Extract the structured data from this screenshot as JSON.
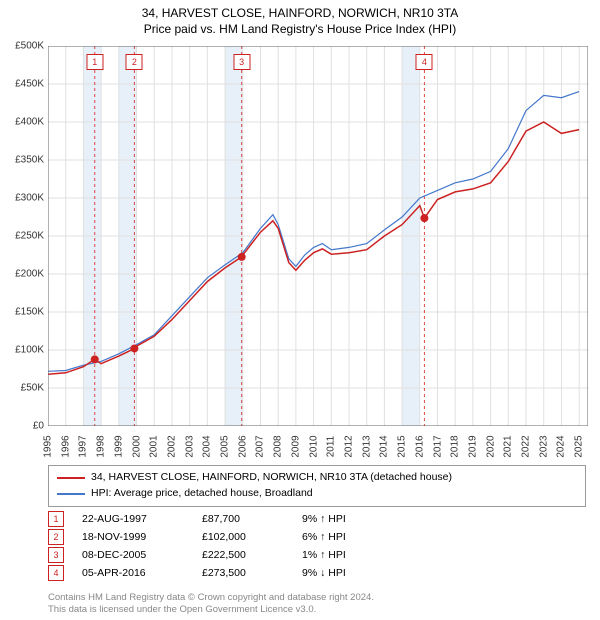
{
  "title_line1": "34, HARVEST CLOSE, HAINFORD, NORWICH, NR10 3TA",
  "title_line2": "Price paid vs. HM Land Registry's House Price Index (HPI)",
  "chart": {
    "type": "line",
    "background_color": "#ffffff",
    "grid_color": "#e0e0e0",
    "axis_color": "#666666",
    "band_color": "#e7f0f8",
    "band_ranges_years": [
      [
        1997,
        1998
      ],
      [
        1999,
        2000
      ],
      [
        2005,
        2006
      ],
      [
        2015,
        2016
      ]
    ],
    "marker_line_color": "#dd4444",
    "x_min": 1995,
    "x_max": 2025.5,
    "y_min": 0,
    "y_max": 500000,
    "y_ticks": [
      0,
      50000,
      100000,
      150000,
      200000,
      250000,
      300000,
      350000,
      400000,
      450000,
      500000
    ],
    "y_tick_labels": [
      "£0",
      "£50K",
      "£100K",
      "£150K",
      "£200K",
      "£250K",
      "£300K",
      "£350K",
      "£400K",
      "£450K",
      "£500K"
    ],
    "x_ticks": [
      1995,
      1996,
      1997,
      1998,
      1999,
      2000,
      2001,
      2002,
      2003,
      2004,
      2005,
      2006,
      2007,
      2008,
      2009,
      2010,
      2011,
      2012,
      2013,
      2014,
      2015,
      2016,
      2017,
      2018,
      2019,
      2020,
      2021,
      2022,
      2023,
      2024,
      2025
    ],
    "series": [
      {
        "name": "hpi",
        "color": "#4477cc",
        "width": 1.2,
        "points": [
          [
            1995,
            72000
          ],
          [
            1996,
            73000
          ],
          [
            1997,
            80000
          ],
          [
            1998,
            85000
          ],
          [
            1999,
            95000
          ],
          [
            2000,
            107000
          ],
          [
            2001,
            120000
          ],
          [
            2002,
            145000
          ],
          [
            2003,
            170000
          ],
          [
            2004,
            195000
          ],
          [
            2005,
            212000
          ],
          [
            2006,
            228000
          ],
          [
            2007,
            260000
          ],
          [
            2007.7,
            278000
          ],
          [
            2008,
            265000
          ],
          [
            2008.6,
            220000
          ],
          [
            2009,
            210000
          ],
          [
            2009.5,
            225000
          ],
          [
            2010,
            235000
          ],
          [
            2010.5,
            240000
          ],
          [
            2011,
            232000
          ],
          [
            2012,
            235000
          ],
          [
            2013,
            240000
          ],
          [
            2014,
            258000
          ],
          [
            2015,
            275000
          ],
          [
            2016,
            300000
          ],
          [
            2017,
            310000
          ],
          [
            2018,
            320000
          ],
          [
            2019,
            325000
          ],
          [
            2020,
            335000
          ],
          [
            2021,
            365000
          ],
          [
            2022,
            415000
          ],
          [
            2023,
            435000
          ],
          [
            2024,
            432000
          ],
          [
            2025,
            440000
          ]
        ]
      },
      {
        "name": "property",
        "color": "#cc2222",
        "width": 1.5,
        "points": [
          [
            1995,
            68000
          ],
          [
            1996,
            70000
          ],
          [
            1997,
            78000
          ],
          [
            1997.64,
            87700
          ],
          [
            1998,
            82000
          ],
          [
            1999,
            92000
          ],
          [
            1999.88,
            102000
          ],
          [
            2000,
            105000
          ],
          [
            2001,
            118000
          ],
          [
            2002,
            140000
          ],
          [
            2003,
            165000
          ],
          [
            2004,
            190000
          ],
          [
            2005,
            208000
          ],
          [
            2005.94,
            222500
          ],
          [
            2006,
            225000
          ],
          [
            2007,
            255000
          ],
          [
            2007.7,
            270000
          ],
          [
            2008,
            260000
          ],
          [
            2008.6,
            215000
          ],
          [
            2009,
            205000
          ],
          [
            2009.5,
            218000
          ],
          [
            2010,
            228000
          ],
          [
            2010.5,
            233000
          ],
          [
            2011,
            226000
          ],
          [
            2012,
            228000
          ],
          [
            2013,
            232000
          ],
          [
            2014,
            250000
          ],
          [
            2015,
            265000
          ],
          [
            2016,
            290000
          ],
          [
            2016.26,
            273500
          ],
          [
            2017,
            298000
          ],
          [
            2018,
            308000
          ],
          [
            2019,
            312000
          ],
          [
            2020,
            320000
          ],
          [
            2021,
            348000
          ],
          [
            2022,
            388000
          ],
          [
            2023,
            400000
          ],
          [
            2024,
            385000
          ],
          [
            2025,
            390000
          ]
        ]
      }
    ],
    "markers": [
      {
        "num": "1",
        "x": 1997.64,
        "y": 87700,
        "vline_x": 1997.64
      },
      {
        "num": "2",
        "x": 1999.88,
        "y": 102000,
        "vline_x": 1999.88
      },
      {
        "num": "3",
        "x": 2005.94,
        "y": 222500,
        "vline_x": 2005.94
      },
      {
        "num": "4",
        "x": 2016.26,
        "y": 273500,
        "vline_x": 2016.26
      }
    ],
    "label_fontsize": 10
  },
  "legend": {
    "line1_color": "#cc2222",
    "line1_text": "34, HARVEST CLOSE, HAINFORD, NORWICH, NR10 3TA (detached house)",
    "line2_color": "#4477cc",
    "line2_text": "HPI: Average price, detached house, Broadland"
  },
  "transactions": [
    {
      "num": "1",
      "date": "22-AUG-1997",
      "price": "£87,700",
      "pct": "9% ↑ HPI"
    },
    {
      "num": "2",
      "date": "18-NOV-1999",
      "price": "£102,000",
      "pct": "6% ↑ HPI"
    },
    {
      "num": "3",
      "date": "08-DEC-2005",
      "price": "£222,500",
      "pct": "1% ↑ HPI"
    },
    {
      "num": "4",
      "date": "05-APR-2016",
      "price": "£273,500",
      "pct": "9% ↓ HPI"
    }
  ],
  "transaction_box_color": "#cc2222",
  "footnote_line1": "Contains HM Land Registry data © Crown copyright and database right 2024.",
  "footnote_line2": "This data is licensed under the Open Government Licence v3.0."
}
